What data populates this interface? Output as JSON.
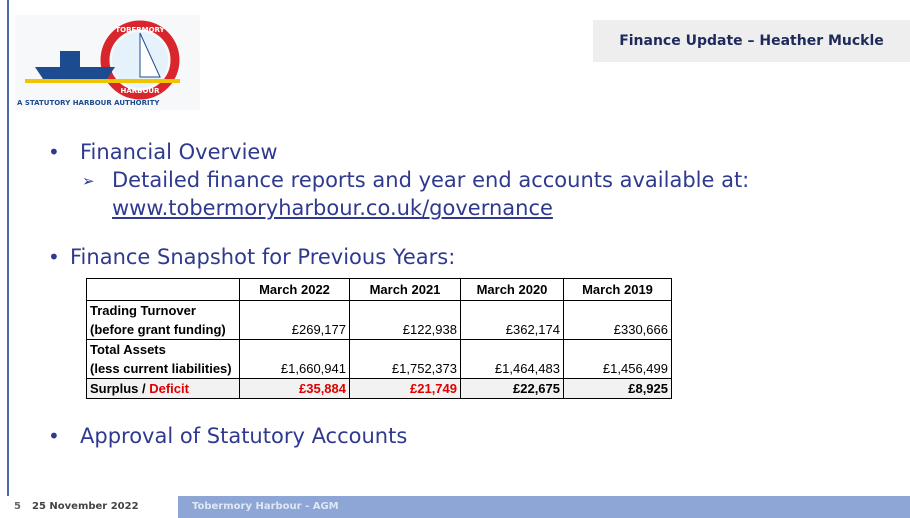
{
  "header": {
    "title": "Finance Update – Heather Muckle"
  },
  "logo": {
    "top": "TOBERMORY",
    "bottom": "HARBOUR",
    "caption": "A STATUTORY HARBOUR AUTHORITY"
  },
  "bullets": [
    {
      "text": "Financial Overview",
      "sub": {
        "text": "Detailed finance reports and year end accounts available at:",
        "link": "www.tobermoryharbour.co.uk/governance"
      }
    },
    {
      "text": "Finance Snapshot for Previous Years:"
    },
    {
      "text": "Approval of Statutory Accounts"
    }
  ],
  "table": {
    "columns": [
      "March 2022",
      "March 2021",
      "March 2020",
      "March 2019"
    ],
    "deficit_color": "#e00000",
    "rows": [
      {
        "label": [
          "Trading Turnover",
          "(before grant funding)"
        ],
        "values": [
          {
            "text": "£269,177"
          },
          {
            "text": "£122,938"
          },
          {
            "text": "£362,174"
          },
          {
            "text": "£330,666"
          }
        ]
      },
      {
        "label": [
          "Total Assets",
          "(less current liabilities)"
        ],
        "values": [
          {
            "text": "£1,660,941"
          },
          {
            "text": "£1,752,373"
          },
          {
            "text": "£1,464,483"
          },
          {
            "text": "£1,456,499"
          }
        ]
      },
      {
        "label": [
          "Surplus / "
        ],
        "label_deficit": "Deficit",
        "bold": true,
        "values": [
          {
            "text": "£35,884",
            "deficit": true
          },
          {
            "text": "£21,749",
            "deficit": true
          },
          {
            "text": "£22,675"
          },
          {
            "text": "£8,925"
          }
        ]
      }
    ]
  },
  "footer": {
    "page": "5",
    "date": "25 November 2022",
    "event": "Tobermory Harbour - AGM"
  }
}
